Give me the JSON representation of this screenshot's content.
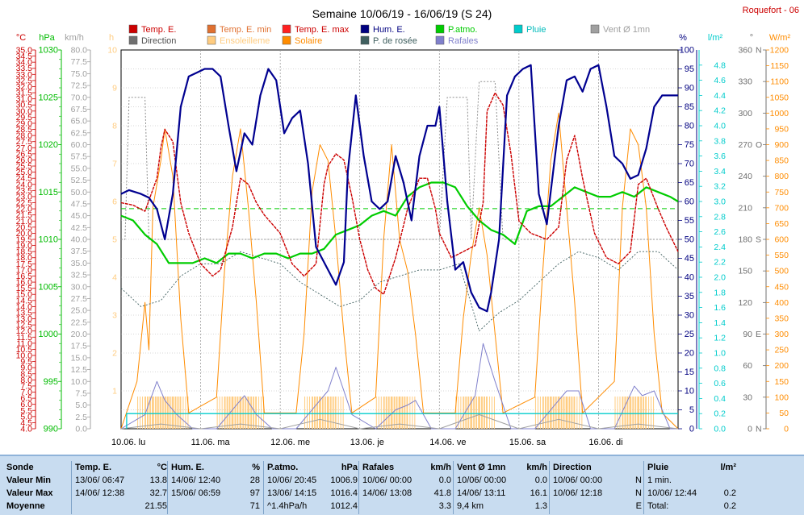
{
  "header": {
    "title": "Semaine 10/06/19 - 16/06/19 (S 24)",
    "station": "Roquefort - 06"
  },
  "legend": [
    {
      "label": "Temp. E.",
      "color": "#cc0000",
      "text_color": "#cc0000"
    },
    {
      "label": "Temp. E. min",
      "color": "#e07030",
      "text_color": "#e07030"
    },
    {
      "label": "Temp. E. max",
      "color": "#ff2020",
      "text_color": "#cc0000"
    },
    {
      "label": "Hum. E.",
      "color": "#000080",
      "text_color": "#000080"
    },
    {
      "label": "P.atmo.",
      "color": "#00cc00",
      "text_color": "#00cc00"
    },
    {
      "label": "Pluie",
      "color": "#00cccc",
      "text_color": "#00bbbb"
    },
    {
      "label": "Vent Ø 1mn",
      "color": "#a0a0a0",
      "text_color": "#a0a0a0"
    },
    {
      "label": "Direction",
      "color": "#707070",
      "text_color": "#505050"
    },
    {
      "label": "Ensoleilleme",
      "color": "#ffcc80",
      "text_color": "#ffcc80"
    },
    {
      "label": "Solaire",
      "color": "#ff8c00",
      "text_color": "#ff8c00"
    },
    {
      "label": "P. de rosée",
      "color": "#406060",
      "text_color": "#406060"
    },
    {
      "label": "Rafales",
      "color": "#8080cc",
      "text_color": "#8080cc"
    }
  ],
  "axes": {
    "temp": {
      "unit": "°C",
      "min": 4.0,
      "max": 35.0,
      "step": 0.5,
      "color": "#cc0000"
    },
    "press": {
      "unit": "hPa",
      "ticks": [
        990,
        995,
        1000,
        1005,
        1010,
        1015,
        1020,
        1025,
        1030
      ],
      "color": "#00bb00"
    },
    "wind": {
      "unit": "km/h",
      "min": 0,
      "max": 80,
      "step": 2.5,
      "color": "#a0a0a0"
    },
    "hour": {
      "unit": "h",
      "ticks": [
        1,
        2,
        3,
        4,
        5,
        6,
        7,
        8,
        9,
        10
      ],
      "color": "#ffcc80"
    },
    "hum": {
      "unit": "%",
      "ticks": [
        0,
        5,
        10,
        15,
        20,
        25,
        30,
        35,
        40,
        45,
        50,
        55,
        60,
        65,
        70,
        75,
        80,
        85,
        90,
        95,
        100
      ],
      "color": "#000080"
    },
    "rain": {
      "unit": "l/m²",
      "min": 0.0,
      "max": 4.8,
      "step": 0.2,
      "color": "#00cccc"
    },
    "dir": {
      "unit": "°",
      "ticks": [
        "0",
        "30",
        "60",
        "90",
        "120",
        "150",
        "180",
        "210",
        "240",
        "270",
        "300",
        "330",
        "360"
      ],
      "letters": {
        "0": "N",
        "90": "E",
        "180": "S",
        "270": "O",
        "360": "N"
      },
      "color": "#707070"
    },
    "solar": {
      "unit": "W/m²",
      "min": 0,
      "max": 1200,
      "step": 50,
      "color": "#ff8c00"
    },
    "days": [
      "10.06.  lu",
      "11.06.  ma",
      "12.06.  me",
      "13.06.  je",
      "14.06.  ve",
      "15.06.  sa",
      "16.06.  di"
    ]
  },
  "chart_data": {
    "type": "line",
    "x_unit": "day",
    "xlim": [
      0,
      7
    ],
    "series": [
      {
        "name": "Temp. E.",
        "unit": "°C",
        "x": [
          0,
          0.15,
          0.3,
          0.45,
          0.5,
          0.55,
          0.65,
          0.75,
          0.85,
          1.0,
          1.15,
          1.25,
          1.4,
          1.5,
          1.6,
          1.7,
          1.8,
          2.0,
          2.15,
          2.3,
          2.45,
          2.55,
          2.6,
          2.7,
          2.8,
          2.9,
          3.0,
          3.1,
          3.2,
          3.3,
          3.45,
          3.6,
          3.75,
          3.85,
          3.95,
          4.0,
          4.15,
          4.3,
          4.45,
          4.55,
          4.6,
          4.7,
          4.8,
          4.9,
          5.0,
          5.15,
          5.35,
          5.5,
          5.6,
          5.7,
          5.8,
          5.95,
          6.1,
          6.25,
          6.4,
          6.5,
          6.6,
          6.75,
          6.85,
          7.0
        ],
        "values": [
          22.5,
          22.3,
          21.8,
          24.5,
          27.0,
          28.5,
          27.5,
          22.5,
          20.0,
          17.5,
          16.5,
          17.0,
          20.5,
          24.5,
          24.0,
          22.5,
          21.5,
          20.0,
          17.5,
          16.5,
          17.5,
          24.0,
          25.5,
          26.5,
          26.0,
          23.0,
          19.5,
          17.0,
          15.5,
          15.0,
          18.0,
          22.0,
          24.5,
          24.5,
          22.0,
          20.0,
          18.0,
          18.5,
          19.0,
          22.5,
          30.0,
          31.5,
          30.5,
          26.5,
          21.0,
          20.0,
          19.5,
          20.5,
          26.0,
          28.0,
          24.5,
          20.0,
          18.0,
          17.5,
          18.5,
          24.0,
          24.5,
          22.0,
          20.5,
          18.5
        ]
      },
      {
        "name": "Hum. E.",
        "unit": "%",
        "x": [
          0,
          0.1,
          0.25,
          0.35,
          0.45,
          0.55,
          0.65,
          0.75,
          0.85,
          0.95,
          1.05,
          1.15,
          1.25,
          1.35,
          1.45,
          1.55,
          1.65,
          1.75,
          1.85,
          1.95,
          2.05,
          2.15,
          2.25,
          2.35,
          2.45,
          2.5,
          2.6,
          2.7,
          2.8,
          2.85,
          2.95,
          3.05,
          3.15,
          3.25,
          3.35,
          3.45,
          3.55,
          3.65,
          3.75,
          3.85,
          3.95,
          4.0,
          4.1,
          4.2,
          4.3,
          4.4,
          4.5,
          4.6,
          4.65,
          4.75,
          4.85,
          4.95,
          5.05,
          5.15,
          5.25,
          5.35,
          5.5,
          5.6,
          5.7,
          5.8,
          5.9,
          6.0,
          6.1,
          6.2,
          6.3,
          6.4,
          6.5,
          6.6,
          6.7,
          6.8,
          6.9,
          7.0
        ],
        "values": [
          62,
          63,
          62,
          61,
          58,
          50,
          62,
          85,
          93,
          94,
          95,
          95,
          93,
          80,
          68,
          78,
          75,
          88,
          95,
          92,
          78,
          82,
          84,
          70,
          48,
          46,
          42,
          38,
          44,
          68,
          88,
          72,
          60,
          58,
          60,
          72,
          65,
          55,
          72,
          80,
          80,
          85,
          60,
          42,
          44,
          36,
          32,
          31,
          36,
          50,
          88,
          93,
          95,
          96,
          62,
          54,
          80,
          92,
          93,
          89,
          95,
          96,
          85,
          72,
          70,
          66,
          67,
          74,
          85,
          88,
          88,
          88
        ]
      },
      {
        "name": "P.atmo.",
        "unit": "hPa",
        "x": [
          0,
          0.15,
          0.3,
          0.45,
          0.6,
          0.75,
          0.9,
          1.05,
          1.2,
          1.35,
          1.5,
          1.65,
          1.8,
          1.95,
          2.1,
          2.25,
          2.4,
          2.55,
          2.7,
          2.85,
          3.0,
          3.15,
          3.3,
          3.45,
          3.6,
          3.75,
          3.9,
          4.05,
          4.2,
          4.35,
          4.5,
          4.65,
          4.8,
          4.95,
          5.1,
          5.25,
          5.4,
          5.55,
          5.7,
          5.85,
          6.0,
          6.15,
          6.3,
          6.45,
          6.6,
          6.75,
          6.9,
          7.0
        ],
        "values": [
          1012.5,
          1012.0,
          1010.5,
          1009.5,
          1007.5,
          1007.5,
          1007.5,
          1008.0,
          1007.5,
          1008.5,
          1008.5,
          1008.0,
          1008.5,
          1008.5,
          1008.0,
          1008.5,
          1008.5,
          1009.0,
          1010.5,
          1011.0,
          1011.5,
          1012.5,
          1013.0,
          1012.5,
          1014.5,
          1015.5,
          1016.0,
          1016.0,
          1015.5,
          1013.5,
          1012.0,
          1011.0,
          1010.5,
          1009.5,
          1013.0,
          1013.5,
          1013.5,
          1014.5,
          1015.5,
          1015.0,
          1014.5,
          1014.5,
          1015.0,
          1014.5,
          1015.5,
          1015.0,
          1014.5,
          1014.0
        ]
      },
      {
        "name": "P. de rosée",
        "unit": "°C",
        "x": [
          0,
          0.25,
          0.5,
          0.75,
          1.0,
          1.25,
          1.5,
          1.75,
          2.0,
          2.25,
          2.5,
          2.75,
          3.0,
          3.25,
          3.5,
          3.75,
          4.0,
          4.25,
          4.5,
          4.75,
          5.0,
          5.25,
          5.5,
          5.75,
          6.0,
          6.25,
          6.5,
          6.75,
          7.0
        ],
        "values": [
          15.5,
          14.0,
          14.5,
          16.5,
          17.5,
          17.5,
          18.5,
          18.0,
          17.5,
          16.0,
          15.0,
          14.0,
          14.5,
          16.0,
          16.5,
          17.0,
          17.0,
          17.5,
          12.0,
          13.5,
          14.5,
          16.0,
          17.5,
          18.5,
          18.0,
          17.0,
          18.5,
          18.5,
          17.0
        ]
      },
      {
        "name": "Vent Ø 1mn",
        "unit": "km/h",
        "x": [
          0,
          0.5,
          1.0,
          1.5,
          2.0,
          2.5,
          3.0,
          3.5,
          4.0,
          4.5,
          5.0,
          5.5,
          6.0,
          6.5,
          7.0
        ],
        "values": [
          0,
          1,
          0,
          1,
          0,
          2,
          0,
          1,
          0,
          3,
          0,
          2,
          0,
          1,
          0
        ]
      },
      {
        "name": "Rafales",
        "unit": "km/h",
        "x": [
          0,
          0.3,
          0.45,
          0.55,
          0.7,
          0.9,
          1.2,
          1.45,
          1.55,
          1.7,
          1.9,
          2.2,
          2.45,
          2.6,
          2.7,
          2.9,
          3.2,
          3.45,
          3.6,
          3.7,
          3.9,
          4.2,
          4.45,
          4.55,
          4.7,
          4.9,
          5.2,
          5.45,
          5.6,
          5.75,
          5.9,
          6.2,
          6.45,
          6.55,
          6.7,
          6.9,
          7.0
        ],
        "values": [
          0,
          3,
          10,
          6,
          3,
          0,
          0,
          5,
          7,
          3,
          0,
          0,
          5,
          8,
          13,
          3,
          0,
          4,
          5,
          6,
          0,
          0,
          7,
          18,
          10,
          0,
          0,
          5,
          8,
          8,
          0,
          0,
          9,
          7,
          8,
          0,
          0
        ]
      },
      {
        "name": "Solaire",
        "unit": "W/m²",
        "x": [
          0,
          0.2,
          0.3,
          0.35,
          0.4,
          0.5,
          0.55,
          0.65,
          0.75,
          0.85,
          1.2,
          1.3,
          1.4,
          1.5,
          1.6,
          1.7,
          1.8,
          2.2,
          2.3,
          2.4,
          2.5,
          2.6,
          2.7,
          2.8,
          2.9,
          3.2,
          3.3,
          3.4,
          3.5,
          3.6,
          3.7,
          3.8,
          4.2,
          4.3,
          4.4,
          4.5,
          4.6,
          4.7,
          4.8,
          5.2,
          5.3,
          5.4,
          5.5,
          5.6,
          5.7,
          5.8,
          6.2,
          6.3,
          6.4,
          6.5,
          6.6,
          6.7,
          6.8,
          7.0
        ],
        "values": [
          0,
          150,
          400,
          250,
          700,
          850,
          950,
          800,
          350,
          50,
          100,
          500,
          800,
          950,
          700,
          400,
          50,
          50,
          300,
          750,
          900,
          850,
          600,
          300,
          50,
          100,
          600,
          900,
          600,
          500,
          300,
          50,
          50,
          350,
          550,
          700,
          550,
          300,
          50,
          100,
          500,
          850,
          1000,
          700,
          400,
          50,
          150,
          700,
          950,
          900,
          700,
          300,
          50,
          0
        ]
      },
      {
        "name": "Direction",
        "unit": "°",
        "x": [
          0,
          0.05,
          0.1,
          0.3,
          0.35,
          0.4,
          1.0,
          1.2,
          1.3,
          2.3,
          2.4,
          3.3,
          3.4,
          4.0,
          4.1,
          4.35,
          4.4,
          4.5,
          4.7,
          4.8,
          5.4,
          5.5,
          6.0,
          6.3,
          6.4,
          6.6,
          6.7,
          7.0
        ],
        "values": [
          180,
          180,
          315,
          315,
          180,
          180,
          180,
          180,
          180,
          180,
          180,
          180,
          180,
          180,
          315,
          315,
          180,
          330,
          330,
          180,
          180,
          180,
          180,
          180,
          180,
          180,
          180,
          180
        ]
      }
    ],
    "ylim_temp": [
      4.0,
      35.0
    ],
    "ylim_hum": [
      0,
      100
    ],
    "ylim_press": [
      990,
      1030
    ],
    "ylim_wind": [
      0,
      80
    ],
    "ylim_solar": [
      0,
      1200
    ],
    "ylim_dir": [
      0,
      360
    ],
    "grid": true
  },
  "stats": {
    "sonde": {
      "title": "Sonde",
      "rows": [
        "Valeur Min",
        "Valeur Max",
        "Moyenne"
      ]
    },
    "temp": {
      "title": "Temp. E.",
      "unit": "°C",
      "rows": [
        {
          "date": "13/06/  06:47",
          "val": "13.8"
        },
        {
          "date": "14/06/  12:38",
          "val": "32.7"
        },
        {
          "date": "",
          "val": "21.55"
        }
      ]
    },
    "hum": {
      "title": "Hum. E.",
      "unit": "%",
      "rows": [
        {
          "date": "14/06/  12:40",
          "val": "28"
        },
        {
          "date": "15/06/  06:59",
          "val": "97"
        },
        {
          "date": "",
          "val": "71"
        }
      ]
    },
    "press": {
      "title": "P.atmo.",
      "unit": "hPa",
      "rows": [
        {
          "date": "10/06/  20:45",
          "val": "1006.9"
        },
        {
          "date": "13/06/  14:15",
          "val": "1016.4"
        },
        {
          "date": "^1.4hPa/h",
          "val": "1012.4"
        }
      ]
    },
    "raf": {
      "title": "Rafales",
      "unit": "km/h",
      "rows": [
        {
          "date": "10/06/  00:00",
          "val": "0.0"
        },
        {
          "date": "14/06/  13:08",
          "val": "41.8"
        },
        {
          "date": "",
          "val": "3.3"
        }
      ]
    },
    "vent": {
      "title": "Vent Ø 1mn",
      "unit": "km/h",
      "rows": [
        {
          "date": "10/06/  00:00",
          "val": "0.0"
        },
        {
          "date": "14/06/  13:11",
          "val": "16.1"
        },
        {
          "date": "9,4 km",
          "val": "1.3"
        }
      ]
    },
    "dir": {
      "title": "Direction",
      "unit": "",
      "rows": [
        {
          "date": "10/06/  00:00",
          "val": "N"
        },
        {
          "date": "10/06/  12:18",
          "val": "N"
        },
        {
          "date": "",
          "val": "E"
        }
      ]
    },
    "pluie": {
      "title": "Pluie",
      "unit": "l/m²",
      "rows": [
        {
          "date": "1 min.",
          "val": ""
        },
        {
          "date": "10/06/  12:44",
          "val": "0.2"
        },
        {
          "date": "Total:",
          "val": "0.2"
        }
      ]
    }
  }
}
